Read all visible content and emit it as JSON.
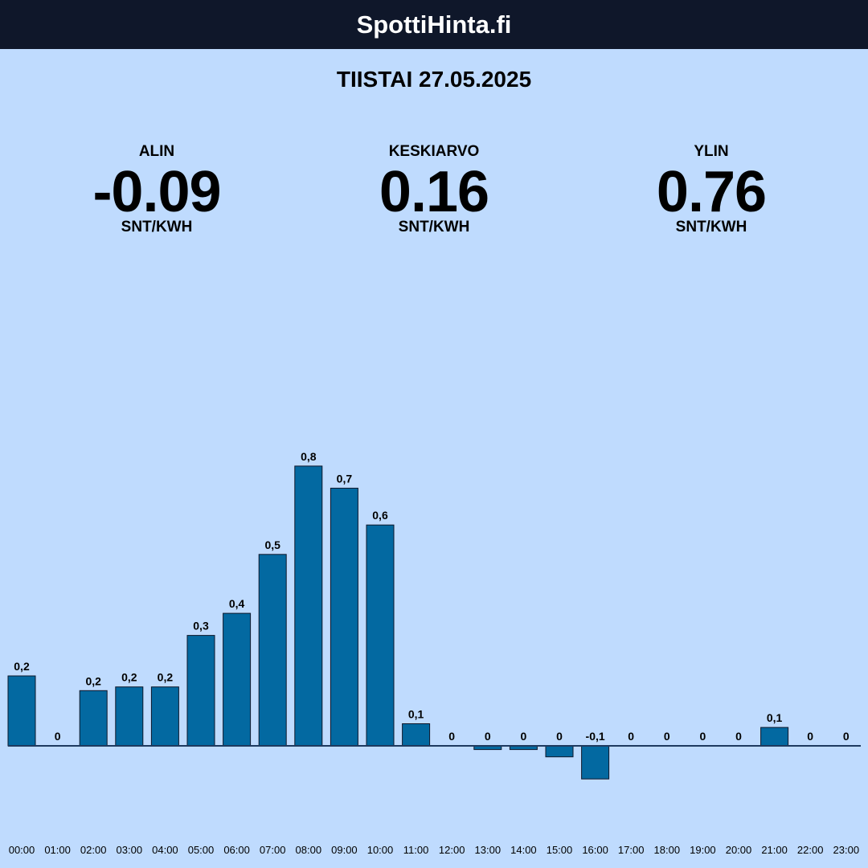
{
  "header": {
    "title": "SpottiHinta.fi"
  },
  "date": "TIISTAI 27.05.2025",
  "stats": {
    "min": {
      "label": "ALIN",
      "value": "-0.09",
      "unit": "SNT/KWH"
    },
    "avg": {
      "label": "KESKIARVO",
      "value": "0.16",
      "unit": "SNT/KWH"
    },
    "max": {
      "label": "YLIN",
      "value": "0.76",
      "unit": "SNT/KWH"
    }
  },
  "colors": {
    "bar": "#0369a1",
    "background": "#bfdbfe",
    "header": "#0f172a"
  },
  "chart_data": {
    "type": "bar",
    "categories": [
      "00:00",
      "01:00",
      "02:00",
      "03:00",
      "04:00",
      "05:00",
      "06:00",
      "07:00",
      "08:00",
      "09:00",
      "10:00",
      "11:00",
      "12:00",
      "13:00",
      "14:00",
      "15:00",
      "16:00",
      "17:00",
      "18:00",
      "19:00",
      "20:00",
      "21:00",
      "22:00",
      "23:00"
    ],
    "values": [
      0.19,
      0.0,
      0.15,
      0.16,
      0.16,
      0.3,
      0.36,
      0.52,
      0.76,
      0.7,
      0.6,
      0.06,
      0.0,
      -0.01,
      -0.01,
      -0.03,
      -0.09,
      0.0,
      0.0,
      0.0,
      0.0,
      0.05,
      0.0,
      0.0
    ],
    "value_labels": [
      "0,2",
      "0",
      "0,2",
      "0,2",
      "0,2",
      "0,3",
      "0,4",
      "0,5",
      "0,8",
      "0,7",
      "0,6",
      "0,1",
      "0",
      "0",
      "0",
      "0",
      "-0,1",
      "0",
      "0",
      "0",
      "0",
      "0,1",
      "0",
      "0"
    ],
    "title": "",
    "xlabel": "",
    "ylabel": "",
    "grid": false,
    "legend": "none"
  }
}
